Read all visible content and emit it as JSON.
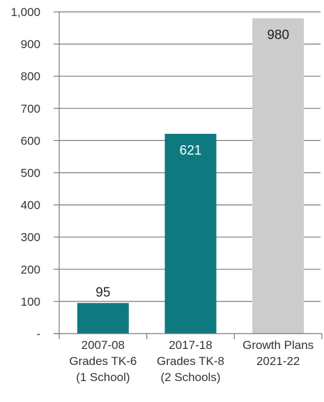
{
  "chart_data": {
    "type": "bar",
    "title": "",
    "xlabel": "",
    "ylabel": "",
    "ylim": [
      0,
      1000
    ],
    "yticks": [
      0,
      100,
      200,
      300,
      400,
      500,
      600,
      700,
      800,
      900,
      1000
    ],
    "ytick_labels": [
      "-",
      "100",
      "200",
      "300",
      "400",
      "500",
      "600",
      "700",
      "800",
      "900",
      "1,000"
    ],
    "grid": true,
    "legend": "none",
    "categories": [
      [
        "2007-08",
        "Grades TK-6",
        "(1 School)"
      ],
      [
        "2017-18",
        "Grades TK-8",
        "(2 Schools)"
      ],
      [
        "Growth Plans",
        "2021-22"
      ]
    ],
    "values": [
      95,
      621,
      980
    ],
    "value_labels": [
      "95",
      "621",
      "980"
    ],
    "bar_colors": [
      "#0e7a80",
      "#0e7a80",
      "#cccccc"
    ],
    "label_colors": [
      "#222222",
      "#ffffff",
      "#222222"
    ],
    "label_position": [
      "outside",
      "inside",
      "inside"
    ]
  }
}
